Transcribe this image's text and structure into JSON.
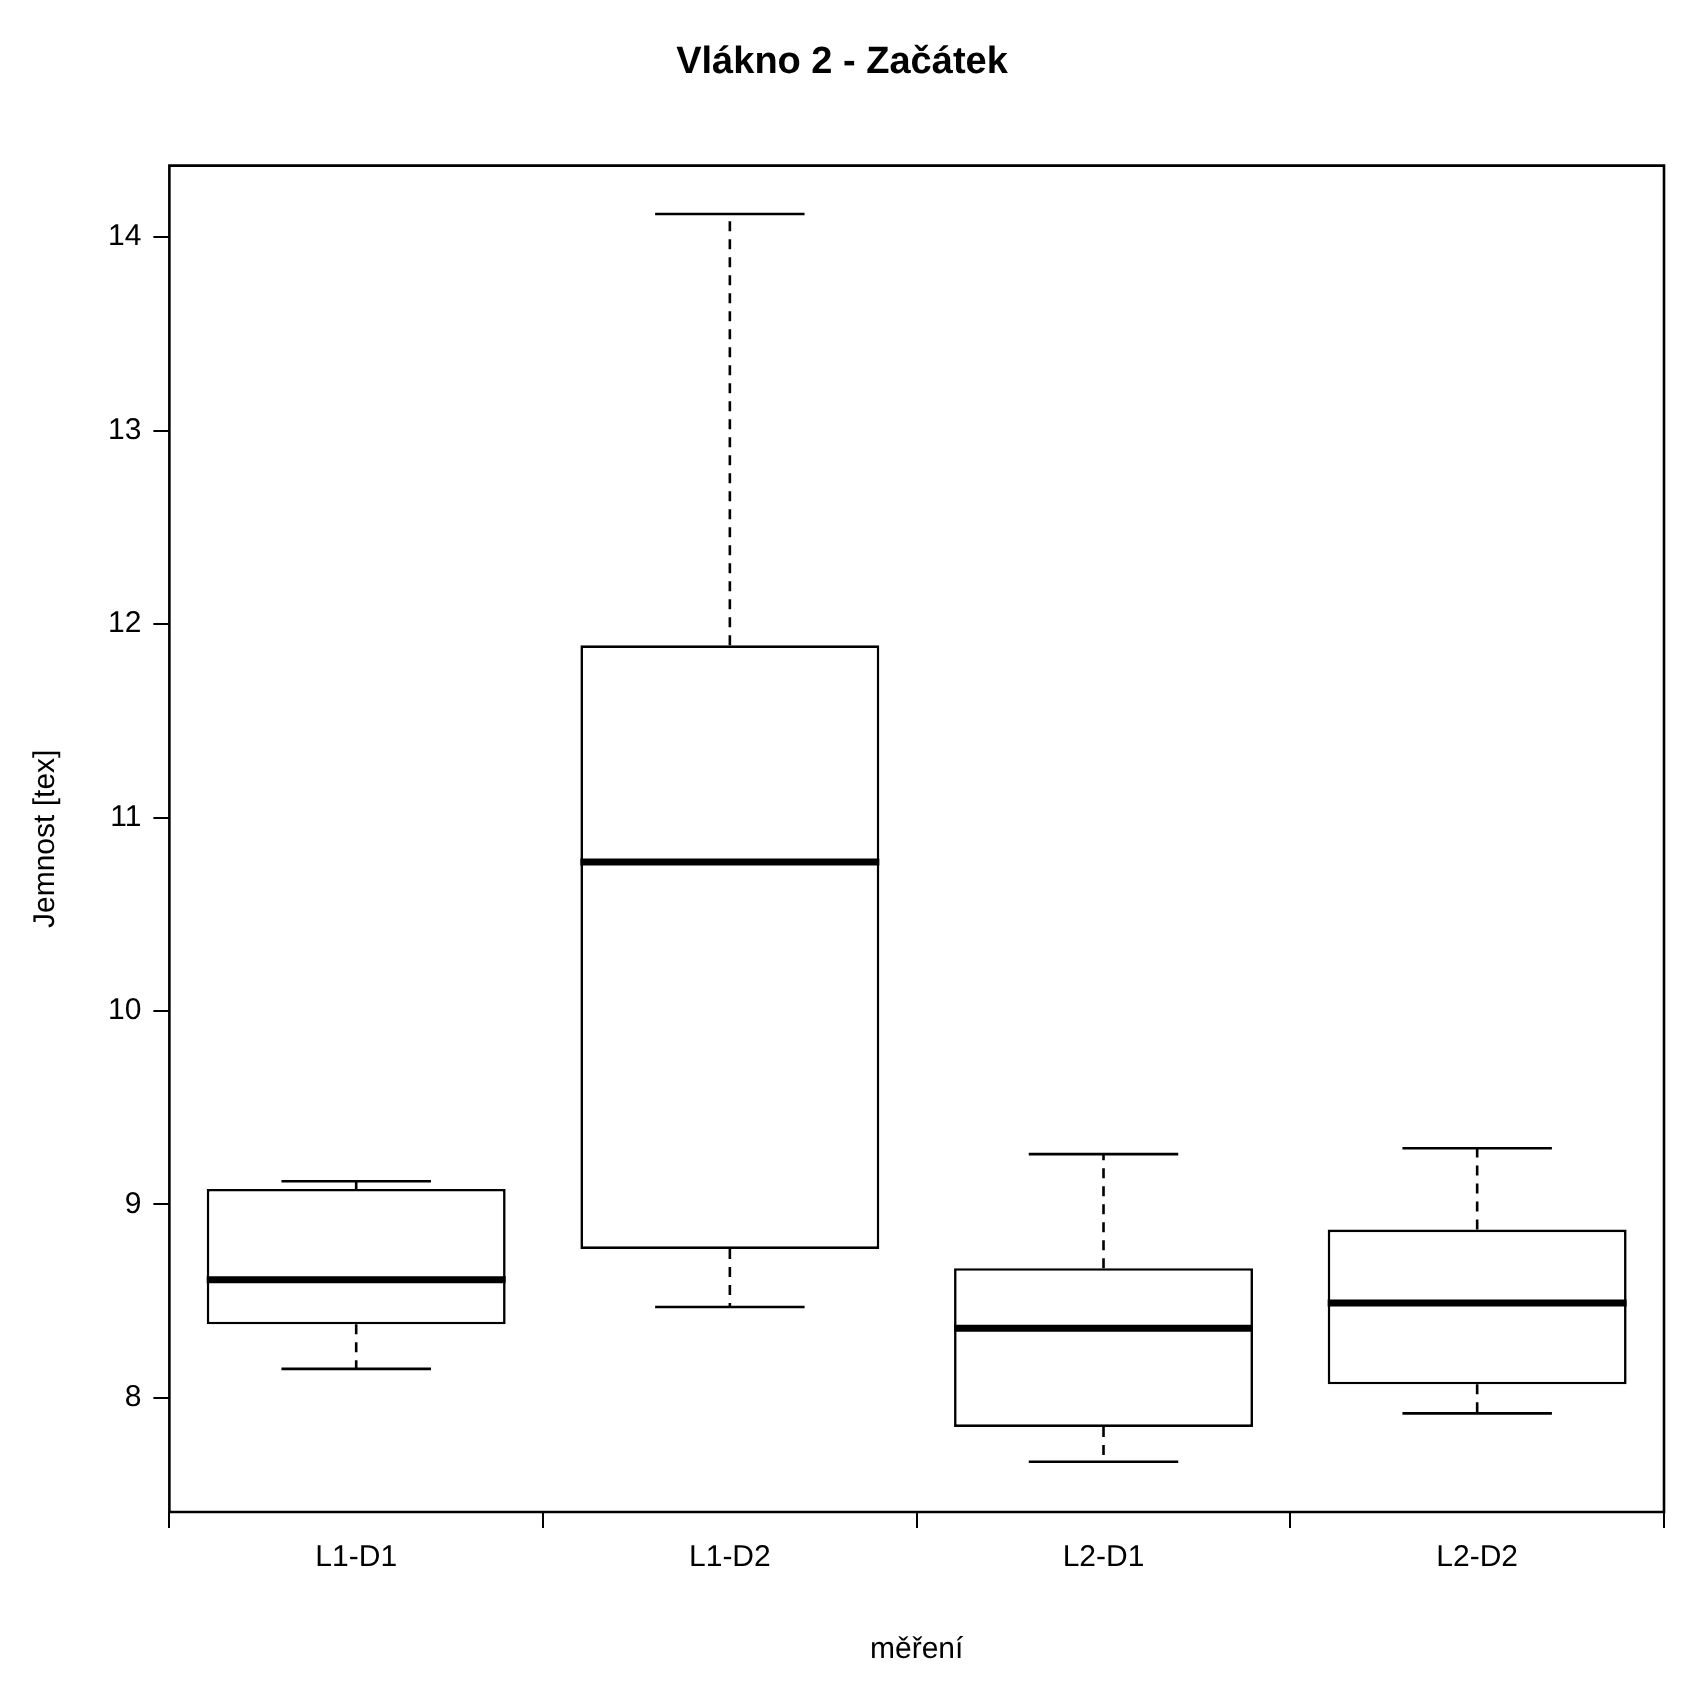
{
  "chart_data": {
    "type": "box",
    "title": "Vlákno 2 - Začátek",
    "xlabel": "měření",
    "ylabel": "Jemnost [tex]",
    "categories": [
      "L1-D1",
      "L1-D2",
      "L2-D1",
      "L2-D2"
    ],
    "boxes": [
      {
        "low": 8.15,
        "q1": 8.38,
        "median": 8.61,
        "q3": 9.08,
        "high": 9.12
      },
      {
        "low": 8.47,
        "q1": 8.77,
        "median": 10.77,
        "q3": 11.89,
        "high": 14.12
      },
      {
        "low": 7.67,
        "q1": 7.85,
        "median": 8.36,
        "q3": 8.67,
        "high": 9.26
      },
      {
        "low": 7.92,
        "q1": 8.07,
        "median": 8.49,
        "q3": 8.87,
        "high": 9.29
      }
    ],
    "ylim": [
      7.41,
      14.37
    ],
    "yticks": [
      8,
      9,
      10,
      11,
      12,
      13,
      14
    ]
  }
}
